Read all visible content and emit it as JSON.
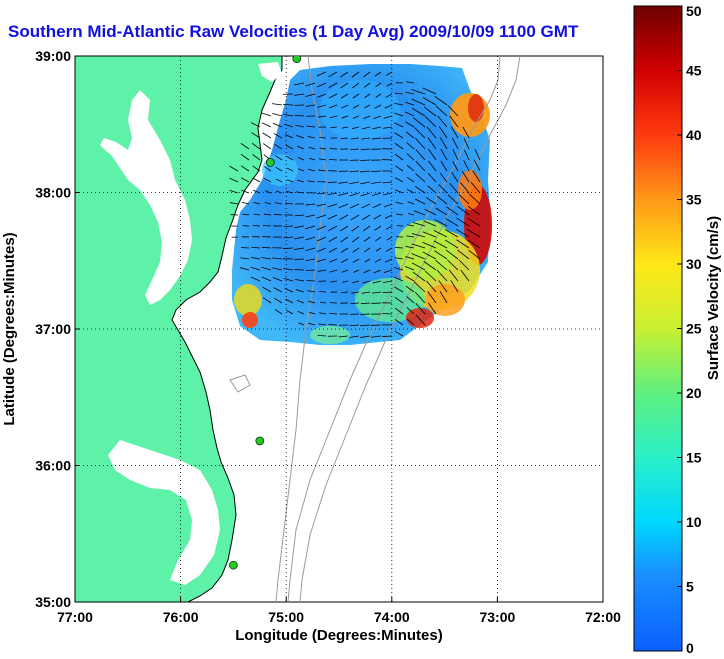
{
  "title": "Southern Mid-Atlantic Raw Velocities (1 Day Avg) 2009/10/09 1100 GMT",
  "colors": {
    "land": "#5ef2a8",
    "coast_line": "#000000",
    "bathymetry": "#9a9a9a",
    "station_marker": "#22cc22",
    "title": "#1010e0"
  },
  "chart_data": {
    "type": "heatmap",
    "subtype": "map-vector-field",
    "xlabel": "Longitude (Degrees:Minutes)",
    "ylabel": "Latitude (Degrees:Minutes)",
    "xlim": [
      -77,
      -72
    ],
    "ylim": [
      35,
      39
    ],
    "x_ticks": [
      "77:00",
      "76:00",
      "75:00",
      "74:00",
      "73:00",
      "72:00"
    ],
    "y_ticks": [
      "35:00",
      "36:00",
      "37:00",
      "38:00",
      "39:00"
    ],
    "grid": true,
    "colorbar": {
      "label": "Surface Velocity (cm/s)",
      "min": 0,
      "max": 50,
      "ticks": [
        "0",
        "5",
        "10",
        "15",
        "20",
        "25",
        "30",
        "35",
        "40",
        "45",
        "50"
      ]
    },
    "stations": [
      {
        "lon": -74.9,
        "lat": 38.98
      },
      {
        "lon": -75.15,
        "lat": 38.22
      },
      {
        "lon": -75.25,
        "lat": 36.18
      },
      {
        "lon": -75.5,
        "lat": 35.27
      }
    ]
  }
}
